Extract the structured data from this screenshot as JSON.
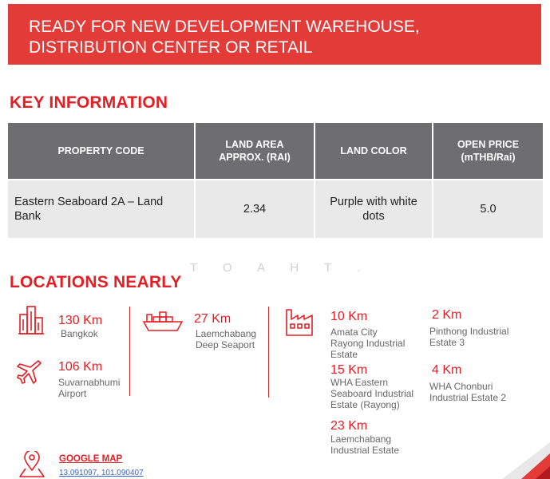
{
  "banner": {
    "line1": "READY FOR NEW DEVELOPMENT WAREHOUSE,",
    "line2": "DISTRIBUTION CENTER OR RETAIL"
  },
  "key_info": {
    "title": "KEY INFORMATION",
    "headers": {
      "code": "PROPERTY CODE",
      "area_line1": "LAND AREA",
      "area_line2": "APPROX. (RAI)",
      "color": "LAND COLOR",
      "price_line1": "OPEN PRICE",
      "price_line2": "(mTHB/Rai)"
    },
    "row": {
      "code": "Eastern Seaboard 2A – Land Bank",
      "area": "2.34",
      "color": "Purple with white dots",
      "price": "5.0"
    }
  },
  "watermark": "T O A H   T .",
  "locations": {
    "title": "LOCATIONS NEARLY",
    "bangkok": {
      "km": "130 Km",
      "name": "Bangkok"
    },
    "suvarnabhumi": {
      "km": "106 Km",
      "name_line1": "Suvarnabhumi",
      "name_line2": "Airport"
    },
    "seaport": {
      "km": "27 Km",
      "name_line1": "Laemchabang",
      "name_line2": "Deep Seaport"
    },
    "amata": {
      "km": "10 Km",
      "name_line1": "Amata City",
      "name_line2": "Rayong Industrial",
      "name_line3": "Estate"
    },
    "pinthong": {
      "km": "2 Km",
      "name_line1": "Pinthong Industrial",
      "name_line2": "Estate 3"
    },
    "wha_eastern": {
      "km": "15 Km",
      "name_line1": "WHA Eastern",
      "name_line2": "Seaboard Industrial",
      "name_line3": "Estate (Rayong)"
    },
    "wha_chonburi": {
      "km": "4 Km",
      "name_line1": "WHA Chonburi",
      "name_line2": "Industrial Estate 2"
    },
    "laemchabang_ie": {
      "km": "23 Km",
      "name_line1": "Laemchabang",
      "name_line2": "Industrial Estate"
    }
  },
  "google_map": {
    "label": "GOOGLE MAP",
    "coords": "13.091097, 101.090407"
  },
  "colors": {
    "accent": "#e31e24",
    "banner": "#e23b38",
    "table_header": "#6e6e70",
    "table_row": "#e9e9e9"
  }
}
